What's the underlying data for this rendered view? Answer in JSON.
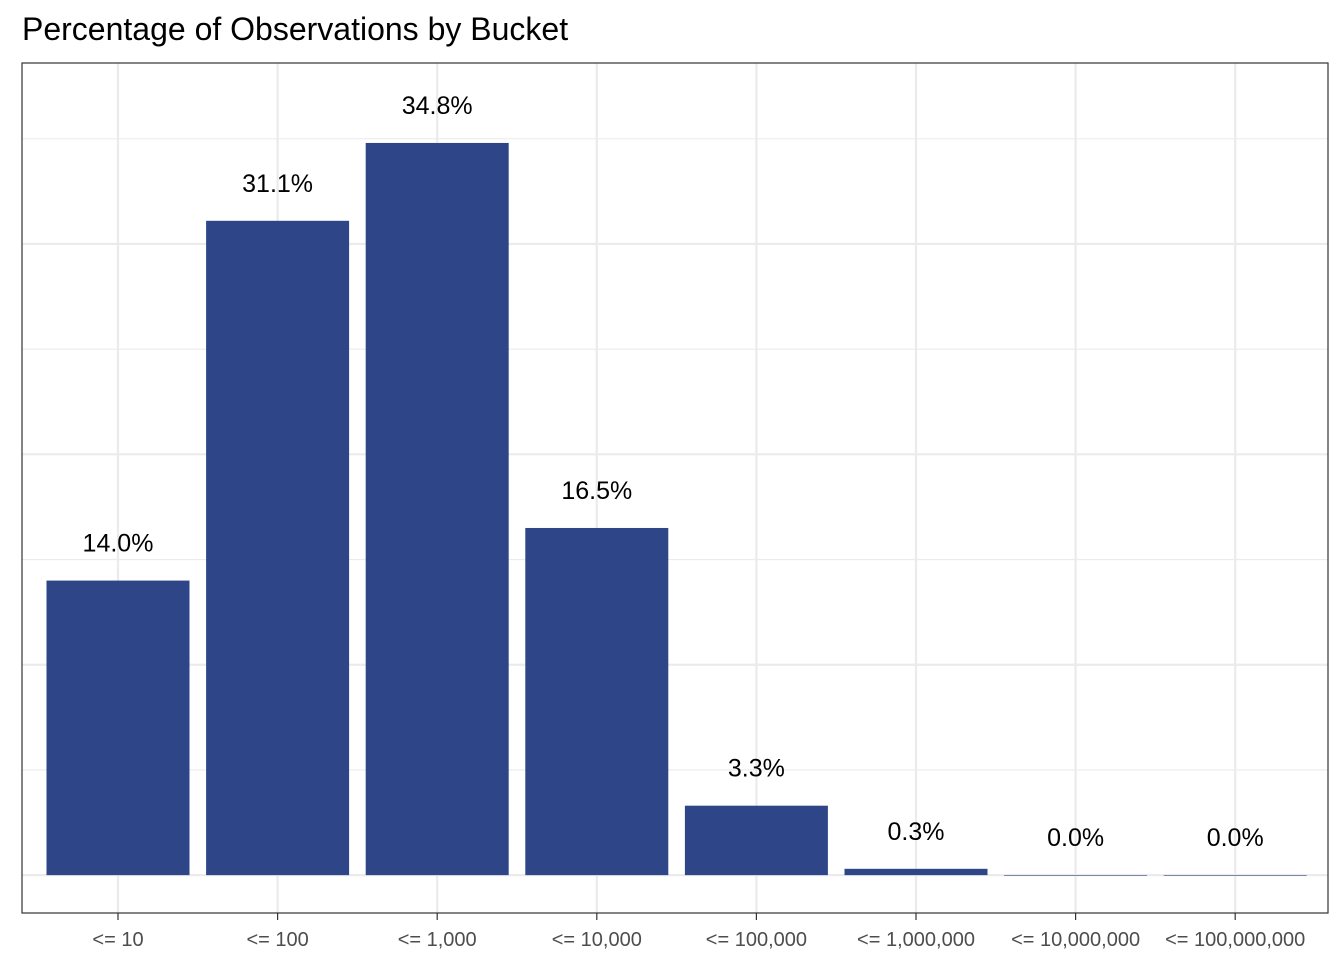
{
  "chart_data": {
    "type": "bar",
    "title": "Percentage of Observations by Bucket",
    "xlabel": "",
    "ylabel": "",
    "categories": [
      "<= 10",
      "<= 100",
      "<= 1,000",
      "<= 10,000",
      "<= 100,000",
      "<= 1,000,000",
      "<= 10,000,000",
      "<= 100,000,000"
    ],
    "values": [
      14.0,
      31.1,
      34.8,
      16.5,
      3.3,
      0.3,
      0.0,
      0.0
    ],
    "data_labels": [
      "14.0%",
      "31.1%",
      "34.8%",
      "16.5%",
      "3.3%",
      "0.3%",
      "0.0%",
      "0.0%"
    ],
    "ylim": [
      -1.8,
      38.6
    ],
    "y_ticks_hidden": true,
    "grid": true,
    "bar_color": "#2e4687",
    "grid_color": "#ebebeb",
    "panel_border_color": "#333333",
    "legend": "none"
  }
}
